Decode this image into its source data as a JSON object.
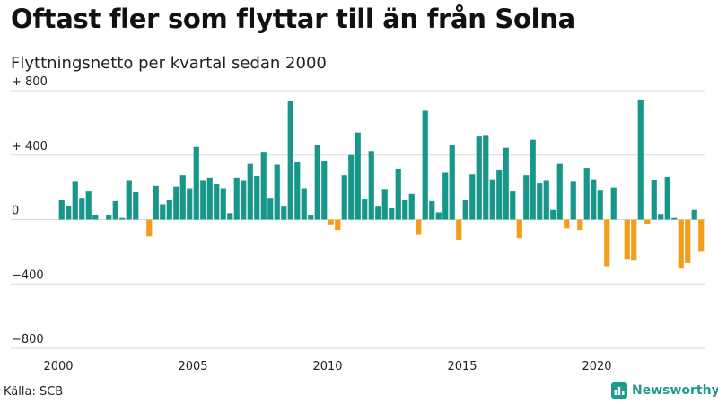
{
  "title": "Oftast fler som flyttar till än från Solna",
  "subtitle": "Flyttningsnetto per kvartal sedan 2000",
  "source": "Källa: SCB",
  "brand": "Newsworthy",
  "colors": {
    "positive": "#17978a",
    "negative": "#f49d1a",
    "brand": "#1f9b8e",
    "grid": "#d9d9d9"
  },
  "chart_data": {
    "type": "bar",
    "title": "Oftast fler som flyttar till än från Solna",
    "subtitle": "Flyttningsnetto per kvartal sedan 2000",
    "xlabel": "",
    "ylabel": "",
    "ylim": [
      -800,
      800
    ],
    "yticks": [
      800,
      400,
      0,
      -400,
      -800
    ],
    "ytick_labels": [
      "+ 800",
      "+ 400",
      "0",
      "−400",
      "−800"
    ],
    "xtick_labels": [
      "2000",
      "2005",
      "2010",
      "2015",
      "2020"
    ],
    "grid": true,
    "legend": "none",
    "start": "2000 Q1",
    "values": [
      120,
      85,
      235,
      130,
      175,
      25,
      0,
      25,
      115,
      10,
      240,
      170,
      0,
      -105,
      210,
      95,
      120,
      205,
      275,
      195,
      450,
      240,
      260,
      220,
      195,
      40,
      260,
      240,
      345,
      270,
      420,
      130,
      340,
      80,
      735,
      360,
      195,
      30,
      465,
      365,
      -35,
      -65,
      275,
      400,
      540,
      125,
      425,
      80,
      185,
      70,
      315,
      120,
      160,
      -95,
      675,
      115,
      45,
      290,
      465,
      -125,
      120,
      280,
      515,
      525,
      250,
      310,
      445,
      175,
      -115,
      275,
      495,
      225,
      240,
      60,
      345,
      -55,
      235,
      -65,
      320,
      250,
      180,
      -290,
      200,
      0,
      -250,
      -255,
      745,
      -30,
      245,
      35,
      265,
      10,
      -305,
      -270,
      60,
      -200
    ]
  }
}
